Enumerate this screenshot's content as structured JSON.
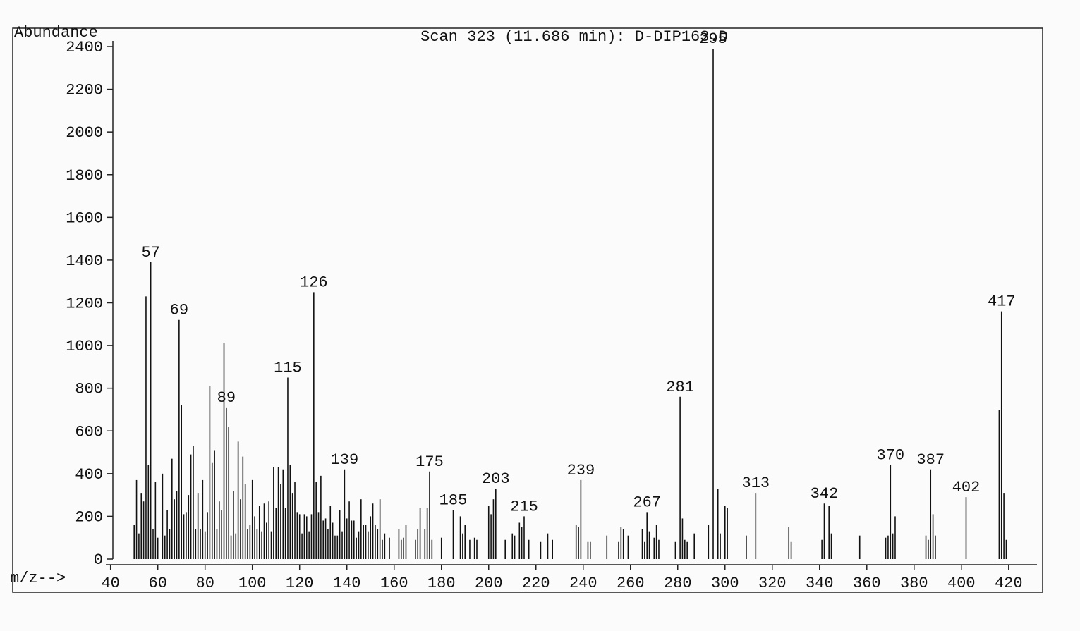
{
  "chart_data": {
    "type": "stick",
    "title": "Scan 323 (11.686 min): D-DIP163.D",
    "y_label": "Abundance",
    "x_label": "m/z-->",
    "x": [
      50,
      51,
      52,
      53,
      54,
      55,
      56,
      57,
      58,
      59,
      60,
      62,
      63,
      64,
      65,
      66,
      67,
      68,
      69,
      70,
      71,
      72,
      73,
      74,
      75,
      76,
      77,
      78,
      79,
      80,
      81,
      82,
      83,
      84,
      85,
      86,
      87,
      88,
      89,
      90,
      91,
      92,
      93,
      94,
      95,
      96,
      97,
      98,
      99,
      100,
      101,
      102,
      103,
      104,
      105,
      106,
      107,
      108,
      109,
      110,
      111,
      112,
      113,
      114,
      115,
      116,
      117,
      118,
      119,
      120,
      121,
      122,
      123,
      124,
      125,
      126,
      127,
      128,
      129,
      130,
      131,
      132,
      133,
      134,
      135,
      136,
      137,
      138,
      139,
      140,
      141,
      142,
      143,
      144,
      145,
      146,
      147,
      148,
      149,
      150,
      151,
      152,
      153,
      154,
      155,
      156,
      158,
      162,
      163,
      164,
      165,
      169,
      170,
      171,
      173,
      174,
      175,
      176,
      180,
      185,
      188,
      189,
      190,
      192,
      194,
      195,
      200,
      201,
      202,
      203,
      207,
      210,
      211,
      213,
      214,
      215,
      217,
      222,
      225,
      227,
      237,
      238,
      239,
      242,
      243,
      250,
      255,
      256,
      257,
      259,
      265,
      266,
      267,
      268,
      270,
      271,
      272,
      279,
      281,
      282,
      283,
      284,
      287,
      293,
      295,
      297,
      298,
      300,
      301,
      309,
      313,
      327,
      328,
      341,
      342,
      344,
      345,
      357,
      368,
      369,
      370,
      371,
      372,
      385,
      386,
      387,
      388,
      389,
      402,
      416,
      417,
      418,
      419
    ],
    "values": [
      160,
      370,
      120,
      310,
      270,
      1230,
      440,
      1390,
      140,
      360,
      100,
      400,
      110,
      230,
      140,
      470,
      280,
      320,
      1120,
      720,
      210,
      220,
      300,
      490,
      530,
      140,
      310,
      140,
      370,
      130,
      220,
      810,
      450,
      510,
      140,
      270,
      230,
      1010,
      710,
      620,
      110,
      320,
      120,
      550,
      280,
      480,
      350,
      140,
      160,
      370,
      200,
      140,
      250,
      130,
      260,
      170,
      270,
      130,
      430,
      240,
      430,
      350,
      420,
      240,
      850,
      440,
      310,
      360,
      220,
      210,
      120,
      210,
      200,
      130,
      210,
      1250,
      360,
      220,
      390,
      180,
      190,
      140,
      250,
      170,
      110,
      110,
      230,
      130,
      420,
      190,
      270,
      180,
      180,
      100,
      130,
      280,
      160,
      160,
      130,
      200,
      260,
      160,
      140,
      280,
      90,
      120,
      100,
      140,
      90,
      100,
      160,
      90,
      140,
      240,
      140,
      240,
      410,
      90,
      100,
      230,
      200,
      120,
      160,
      90,
      100,
      90,
      250,
      210,
      280,
      330,
      90,
      120,
      110,
      170,
      150,
      200,
      90,
      80,
      120,
      90,
      160,
      150,
      370,
      80,
      80,
      110,
      80,
      150,
      140,
      110,
      140,
      80,
      220,
      130,
      100,
      160,
      90,
      80,
      760,
      190,
      90,
      80,
      120,
      160,
      2390,
      330,
      120,
      250,
      240,
      110,
      310,
      150,
      80,
      90,
      260,
      250,
      120,
      110,
      100,
      110,
      440,
      120,
      200,
      110,
      90,
      420,
      210,
      110,
      290,
      700,
      1160,
      310,
      90
    ],
    "peak_labels": [
      57,
      69,
      89,
      115,
      126,
      139,
      175,
      185,
      203,
      215,
      239,
      267,
      281,
      295,
      313,
      342,
      370,
      387,
      402,
      417
    ],
    "color": "#111111",
    "xlim": [
      38,
      432
    ],
    "xticks": [
      40,
      60,
      80,
      100,
      120,
      140,
      160,
      180,
      200,
      220,
      240,
      260,
      280,
      300,
      320,
      340,
      360,
      380,
      400,
      420
    ],
    "ylim": [
      0,
      2400
    ],
    "yticks": [
      0,
      200,
      400,
      600,
      800,
      1000,
      1200,
      1400,
      1600,
      1800,
      2000,
      2200,
      2400
    ]
  }
}
